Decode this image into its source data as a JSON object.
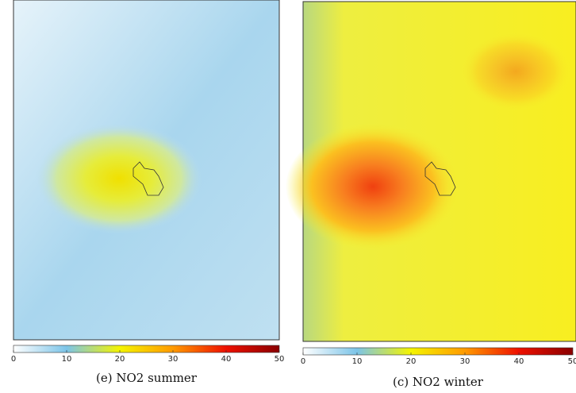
{
  "chart_data": [
    {
      "type": "heatmap",
      "title": "(e) NO2 summer",
      "colormap": [
        "#ffffff",
        "#7cc4e8",
        "#f4f400",
        "#ff9a00",
        "#ee1000",
        "#8a0000"
      ],
      "clim": [
        0,
        50
      ],
      "cticks": [
        0,
        10,
        20,
        30,
        40,
        50
      ]
    },
    {
      "type": "heatmap",
      "title": "(c) NO2 winter",
      "colormap": [
        "#ffffff",
        "#7cc4e8",
        "#f4f400",
        "#ff9a00",
        "#ee1000",
        "#8a0000"
      ],
      "clim": [
        0,
        50
      ],
      "cticks": [
        0,
        10,
        20,
        30,
        40,
        50
      ]
    }
  ]
}
